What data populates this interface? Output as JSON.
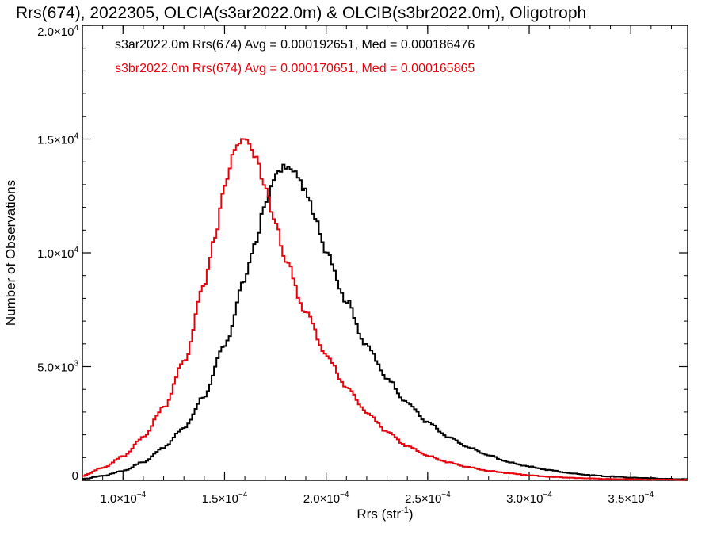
{
  "chart_data": {
    "type": "line",
    "style": "step-histogram",
    "title": "Rrs(674), 2022305, OLCIA(s3ar2022.0m) & OLCIB(s3br2022.0m), Oligotroph",
    "xlabel": {
      "base": "Rrs (str",
      "sup": "-1",
      "close": ")"
    },
    "ylabel": "Number of Observations",
    "xlim": [
      8e-05,
      0.000378
    ],
    "ylim": [
      0,
      20000
    ],
    "grid": false,
    "legend_position": "top-left",
    "x_ticks": [
      {
        "value": 0.0001,
        "mant": "1.0×10",
        "exp": "−4"
      },
      {
        "value": 0.00015,
        "mant": "1.5×10",
        "exp": "−4"
      },
      {
        "value": 0.0002,
        "mant": "2.0×10",
        "exp": "−4"
      },
      {
        "value": 0.00025,
        "mant": "2.5×10",
        "exp": "−4"
      },
      {
        "value": 0.0003,
        "mant": "3.0×10",
        "exp": "−4"
      },
      {
        "value": 0.00035,
        "mant": "3.5×10",
        "exp": "−4"
      }
    ],
    "y_ticks": [
      {
        "value": 0,
        "mant": "0",
        "exp": ""
      },
      {
        "value": 5000,
        "mant": "5.0×10",
        "exp": "3"
      },
      {
        "value": 10000,
        "mant": "1.0×10",
        "exp": "4"
      },
      {
        "value": 15000,
        "mant": "1.5×10",
        "exp": "4"
      },
      {
        "value": 20000,
        "mant": "2.0×10",
        "exp": "4"
      }
    ],
    "series": [
      {
        "name": "s3ar2022.0m Rrs(674) Avg = 0.000192651, Med = 0.000186476",
        "color": "#000000",
        "points": [
          [
            8e-05,
            60
          ],
          [
            9e-05,
            200
          ],
          [
            0.0001,
            420
          ],
          [
            0.00011,
            800
          ],
          [
            0.00012,
            1450
          ],
          [
            0.00013,
            2300
          ],
          [
            0.00014,
            3700
          ],
          [
            0.00015,
            5900
          ],
          [
            0.00016,
            8800
          ],
          [
            0.000165,
            10400
          ],
          [
            0.00017,
            12100
          ],
          [
            0.000175,
            13400
          ],
          [
            0.00018,
            13800
          ],
          [
            0.000185,
            13500
          ],
          [
            0.00019,
            12700
          ],
          [
            0.000195,
            11400
          ],
          [
            0.0002,
            10100
          ],
          [
            0.00021,
            7900
          ],
          [
            0.00022,
            5900
          ],
          [
            0.00023,
            4500
          ],
          [
            0.00024,
            3400
          ],
          [
            0.00025,
            2550
          ],
          [
            0.00026,
            1900
          ],
          [
            0.00027,
            1450
          ],
          [
            0.00028,
            1100
          ],
          [
            0.00029,
            800
          ],
          [
            0.0003,
            600
          ],
          [
            0.00031,
            450
          ],
          [
            0.00032,
            320
          ],
          [
            0.00033,
            230
          ],
          [
            0.00034,
            170
          ],
          [
            0.00035,
            120
          ],
          [
            0.00036,
            90
          ],
          [
            0.00037,
            60
          ],
          [
            0.000378,
            50
          ]
        ]
      },
      {
        "name": "s3br2022.0m Rrs(674) Avg = 0.000170651, Med = 0.000165865",
        "color": "#e8000b",
        "points": [
          [
            8e-05,
            200
          ],
          [
            9e-05,
            550
          ],
          [
            0.0001,
            1050
          ],
          [
            0.00011,
            1900
          ],
          [
            0.00012,
            3200
          ],
          [
            0.00013,
            5200
          ],
          [
            0.00014,
            8600
          ],
          [
            0.000145,
            10600
          ],
          [
            0.00015,
            12900
          ],
          [
            0.000155,
            14600
          ],
          [
            0.00016,
            15000
          ],
          [
            0.000165,
            14300
          ],
          [
            0.00017,
            12900
          ],
          [
            0.000175,
            11300
          ],
          [
            0.00018,
            9700
          ],
          [
            0.00019,
            7400
          ],
          [
            0.0002,
            5500
          ],
          [
            0.00021,
            4100
          ],
          [
            0.00022,
            3000
          ],
          [
            0.00023,
            2150
          ],
          [
            0.00024,
            1500
          ],
          [
            0.00025,
            1080
          ],
          [
            0.00026,
            800
          ],
          [
            0.00027,
            580
          ],
          [
            0.00028,
            420
          ],
          [
            0.00029,
            310
          ],
          [
            0.0003,
            220
          ],
          [
            0.00031,
            160
          ],
          [
            0.00032,
            110
          ],
          [
            0.00033,
            80
          ],
          [
            0.00034,
            60
          ],
          [
            0.00035,
            45
          ],
          [
            0.00036,
            35
          ],
          [
            0.000378,
            25
          ]
        ]
      }
    ]
  }
}
